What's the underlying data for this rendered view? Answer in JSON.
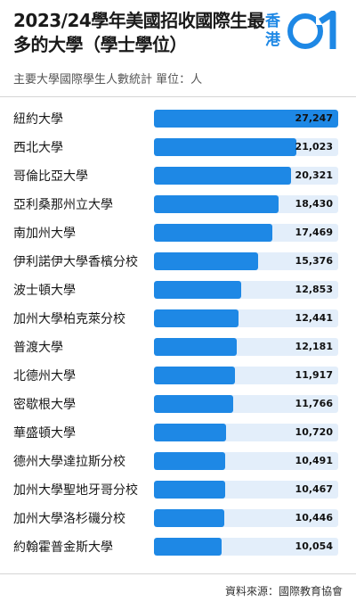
{
  "header": {
    "title": "2023/24學年美國招收國際生最多的大學（學士學位）",
    "subtitle": "主要大學國際學生人數統計 單位：人"
  },
  "logo": {
    "text": "香港",
    "mark": "01"
  },
  "footer": {
    "source": "資料來源：國際教育協會"
  },
  "colors": {
    "bar": "#1e88e5",
    "track": "#e3eefa"
  },
  "chart_data": {
    "type": "bar",
    "orientation": "horizontal",
    "title": "2023/24學年美國招收國際生最多的大學（學士學位）",
    "subtitle": "主要大學國際學生人數統計 單位：人",
    "xlim": [
      0,
      27247
    ],
    "grid": false,
    "categories": [
      "紐約大學",
      "西北大學",
      "哥倫比亞大學",
      "亞利桑那州立大學",
      "南加州大學",
      "伊利諾伊大學香檳分校",
      "波士頓大學",
      "加州大學柏克萊分校",
      "普渡大學",
      "北德州大學",
      "密歇根大學",
      "華盛頓大學",
      "德州大學達拉斯分校",
      "加州大學聖地牙哥分校",
      "加州大學洛杉磯分校",
      "約翰霍普金斯大學"
    ],
    "values": [
      27247,
      21023,
      20321,
      18430,
      17469,
      15376,
      12853,
      12441,
      12181,
      11917,
      11766,
      10720,
      10491,
      10467,
      10446,
      10054
    ],
    "labels": [
      "27,247",
      "21,023",
      "20,321",
      "18,430",
      "17,469",
      "15,376",
      "12,853",
      "12,441",
      "12,181",
      "11,917",
      "11,766",
      "10,720",
      "10,491",
      "10,467",
      "10,446",
      "10,054"
    ]
  }
}
